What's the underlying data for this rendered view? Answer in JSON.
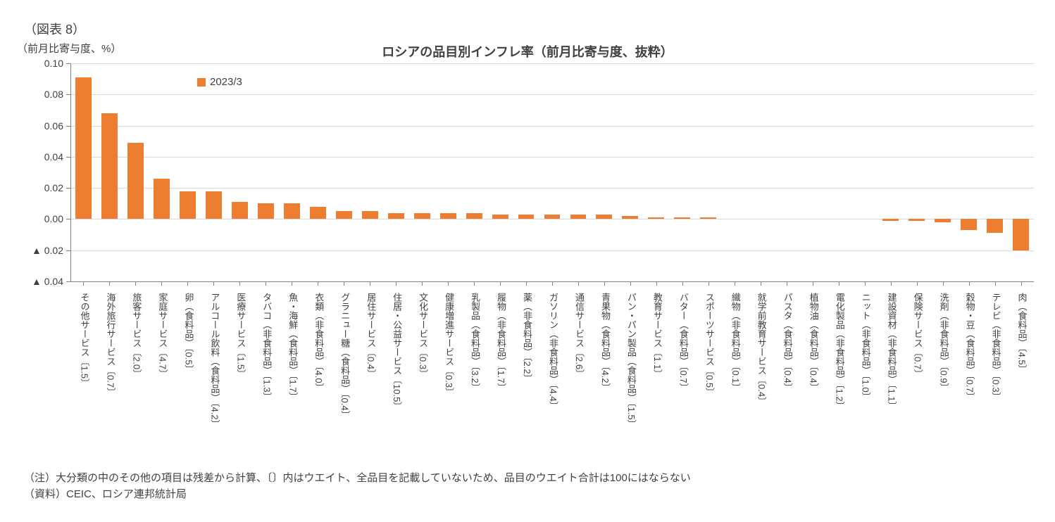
{
  "figure_label": "（図表 8）",
  "y_axis_unit": "（前月比寄与度、%）",
  "title": "ロシアの品目別インフレ率（前月比寄与度、抜粋）",
  "legend_label": "2023/3",
  "note_line1": "（注）大分類の中のその他の項目は残差から計算、〔〕内はウエイト、全品目を記載していないため、品目のウエイト合計は100にはならない",
  "note_line2": "（資料）CEIC、ロシア連邦統計局",
  "chart": {
    "type": "bar",
    "background_color": "#ffffff",
    "bar_color": "#ed7d31",
    "grid_color": "#d9d9d9",
    "axis_color": "#808080",
    "text_color": "#404040",
    "title_fontsize": 18,
    "label_fontsize": 15,
    "tick_fontsize": 14,
    "cat_fontsize": 13,
    "bar_width_ratio": 0.62,
    "ylim": [
      -0.04,
      0.1
    ],
    "ytick_step": 0.02,
    "yticks": [
      {
        "v": 0.1,
        "label": "0.10"
      },
      {
        "v": 0.08,
        "label": "0.08"
      },
      {
        "v": 0.06,
        "label": "0.06"
      },
      {
        "v": 0.04,
        "label": "0.04"
      },
      {
        "v": 0.02,
        "label": "0.02"
      },
      {
        "v": 0.0,
        "label": "0.00"
      },
      {
        "v": -0.02,
        "label": "▲ 0.02"
      },
      {
        "v": -0.04,
        "label": "▲ 0.04"
      }
    ],
    "categories": [
      {
        "label": "その他サービス〔1.5〕",
        "value": 0.091
      },
      {
        "label": "海外旅行サービス〔0.7〕",
        "value": 0.068
      },
      {
        "label": "旅客サービス〔2.0〕",
        "value": 0.049
      },
      {
        "label": "家庭サービス〔4.7〕",
        "value": 0.026
      },
      {
        "label": "卵（食料品）〔0.5〕",
        "value": 0.018
      },
      {
        "label": "アルコール飲料（食料品）〔4.2〕",
        "value": 0.018
      },
      {
        "label": "医療サービス〔1.5〕",
        "value": 0.011
      },
      {
        "label": "タバコ（非食料品）〔1.3〕",
        "value": 0.01
      },
      {
        "label": "魚・海鮮（食料品）〔1.7〕",
        "value": 0.01
      },
      {
        "label": "衣類（非食料品）〔4.0〕",
        "value": 0.008
      },
      {
        "label": "グラニュー糖（食料品）〔0.4〕",
        "value": 0.005
      },
      {
        "label": "居住サービス〔0.4〕",
        "value": 0.005
      },
      {
        "label": "住居・公益サービス〔10.5〕",
        "value": 0.004
      },
      {
        "label": "文化サービス〔0.3〕",
        "value": 0.004
      },
      {
        "label": "健康増進サービス〔0.3〕",
        "value": 0.004
      },
      {
        "label": "乳製品（食料品）〔3.2〕",
        "value": 0.004
      },
      {
        "label": "履物（非食料品）〔1.7〕",
        "value": 0.003
      },
      {
        "label": "薬（非食料品）〔2.2〕",
        "value": 0.003
      },
      {
        "label": "ガソリン（非食料品）〔4.4〕",
        "value": 0.003
      },
      {
        "label": "通信サービス〔2.6〕",
        "value": 0.003
      },
      {
        "label": "青果物（食料品）〔4.2〕",
        "value": 0.003
      },
      {
        "label": "パン・パン製品（食料品）〔1.5〕",
        "value": 0.002
      },
      {
        "label": "教育サービス〔1.1〕",
        "value": 0.001
      },
      {
        "label": "バター（食料品）〔0.7〕",
        "value": 0.001
      },
      {
        "label": "スポーツサービス〔0.5〕",
        "value": 0.001
      },
      {
        "label": "織物（非食料品）〔0.1〕",
        "value": 0.0
      },
      {
        "label": "就学前教育サービス〔0.4〕",
        "value": 0.0
      },
      {
        "label": "パスタ（食料品）〔0.4〕",
        "value": 0.0
      },
      {
        "label": "植物油（食料品）〔0.4〕",
        "value": 0.0
      },
      {
        "label": "電化製品（非食料品）〔1.2〕",
        "value": 0.0
      },
      {
        "label": "ニット（非食料品）〔1.0〕",
        "value": 0.0
      },
      {
        "label": "建設資材（非食料品）〔1.1〕",
        "value": -0.001
      },
      {
        "label": "保険サービス〔0.7〕",
        "value": -0.001
      },
      {
        "label": "洗剤（非食料品）〔0.9〕",
        "value": -0.002
      },
      {
        "label": "穀物・豆（食料品）〔0.7〕",
        "value": -0.007
      },
      {
        "label": "テレビ（非食料品）〔0.3〕",
        "value": -0.009
      },
      {
        "label": "肉（食料品）〔4.5〕",
        "value": -0.02
      }
    ]
  }
}
